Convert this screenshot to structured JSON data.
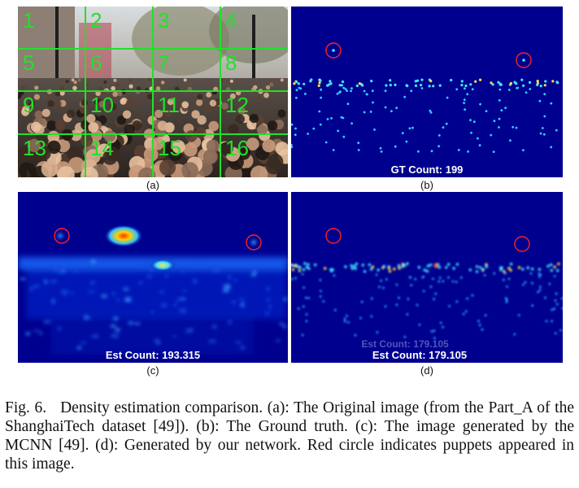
{
  "panels": {
    "a": {
      "label": "(a)",
      "cell_numbers": [
        "1",
        "2",
        "3",
        "4",
        "5",
        "6",
        "7",
        "8",
        "9",
        "10",
        "11",
        "12",
        "13",
        "14",
        "15",
        "16"
      ],
      "grid_color": "#22e02a"
    },
    "b": {
      "label": "(b)",
      "count_text": "GT Count: 199"
    },
    "c": {
      "label": "(c)",
      "count_text": "Est Count: 193.315"
    },
    "d": {
      "label": "(d)",
      "count_text": "Est Count: 179.105",
      "ghost_text": "Est Count: 179.105"
    }
  },
  "caption": {
    "fig_label": "Fig. 6.",
    "text": "Density estimation comparison. (a): The Original image (from the Part_A of the ShanghaiTech dataset [49]). (b): The Ground truth. (c): The image generated by the MCNN [49]. (d): Generated by our network. Red circle indicates puppets appeared in this image."
  },
  "colors": {
    "density_bg": "#00008f",
    "circle": "#ff2020",
    "band": "#1a6cff"
  }
}
